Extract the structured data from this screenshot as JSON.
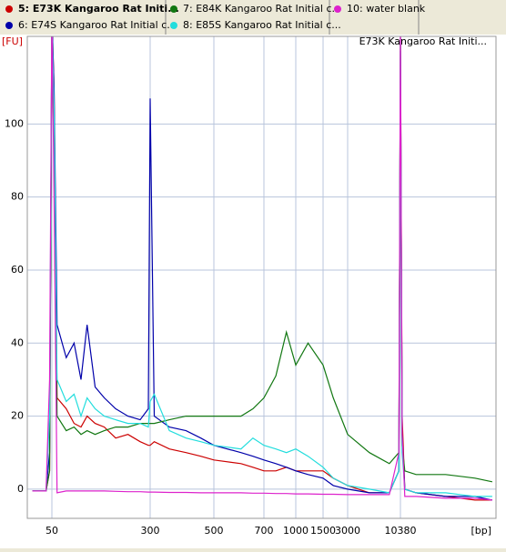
{
  "chart_data": {
    "type": "line",
    "title": "E73K Kangaroo Rat Initi...",
    "ylabel": "[FU]",
    "xlabel": "[bp]",
    "x": [
      35,
      45,
      48,
      50,
      52,
      55,
      65,
      75,
      85,
      95,
      110,
      130,
      160,
      200,
      250,
      290,
      300,
      310,
      350,
      400,
      450,
      500,
      600,
      650,
      700,
      800,
      900,
      1000,
      1200,
      1500,
      2000,
      3000,
      5000,
      8000,
      10000,
      10380,
      10800,
      11500,
      15000,
      30000,
      60000,
      90000
    ],
    "xlim": [
      32,
      95000
    ],
    "xticks": [
      50,
      300,
      500,
      700,
      1000,
      1500,
      3000,
      10380
    ],
    "ylim": [
      -8,
      124
    ],
    "yticks": [
      0,
      20,
      40,
      60,
      80,
      100
    ],
    "grid": true,
    "series": [
      {
        "name": "5: E73K Kangaroo Rat Initi...",
        "color": "#cc0000",
        "values": [
          -0.5,
          -0.5,
          5,
          130,
          110,
          25,
          22,
          18,
          17,
          20,
          18,
          17,
          14,
          15,
          13,
          12,
          12,
          13,
          11,
          10,
          9,
          8,
          7,
          6,
          5,
          5,
          6,
          5,
          5,
          5,
          3,
          1,
          -1,
          -1,
          5,
          124,
          20,
          0,
          -1,
          -2,
          -3,
          -3
        ]
      },
      {
        "name": "6: E74S Kangaroo Rat Initial c...",
        "color": "#0000aa",
        "values": [
          -0.5,
          -0.5,
          10,
          130,
          110,
          45,
          36,
          40,
          30,
          45,
          28,
          25,
          22,
          20,
          19,
          22,
          107,
          20,
          17,
          16,
          14,
          12,
          10,
          9,
          8,
          7,
          6,
          5,
          4,
          3,
          1,
          0,
          -1,
          -1,
          5,
          120,
          15,
          0,
          -1,
          -2,
          -2,
          -3
        ]
      },
      {
        "name": "7: E84K Kangaroo Rat Initial c...",
        "color": "#117711",
        "values": [
          -0.5,
          -0.5,
          5,
          125,
          100,
          20,
          16,
          17,
          15,
          16,
          15,
          16,
          17,
          17,
          18,
          18,
          18,
          18,
          19,
          20,
          20,
          20,
          20,
          22,
          25,
          31,
          43,
          34,
          40,
          34,
          25,
          15,
          10,
          7,
          10,
          122,
          12,
          5,
          4,
          4,
          3,
          2
        ]
      },
      {
        "name": "8: E85S Kangaroo Rat Initial c...",
        "color": "#22dddd",
        "values": [
          -0.5,
          -0.5,
          20,
          128,
          105,
          30,
          24,
          26,
          20,
          25,
          22,
          20,
          19,
          18,
          18,
          17,
          24,
          26,
          16,
          14,
          13,
          12,
          11,
          14,
          12,
          11,
          10,
          11,
          9,
          6,
          3,
          1,
          0,
          -1,
          5,
          125,
          10,
          0,
          -1,
          -1,
          -2,
          -2
        ]
      },
      {
        "name": "10: water blank",
        "color": "#dd22cc",
        "values": [
          -0.5,
          -0.5,
          30,
          130,
          80,
          -1,
          -0.5,
          -0.5,
          -0.5,
          -0.5,
          -0.5,
          -0.5,
          -0.6,
          -0.7,
          -0.7,
          -0.8,
          -0.8,
          -0.8,
          -0.9,
          -0.9,
          -1,
          -1,
          -1,
          -1.1,
          -1.1,
          -1.2,
          -1.2,
          -1.3,
          -1.3,
          -1.4,
          -1.4,
          -1.5,
          -1.5,
          -1.5,
          10,
          128,
          15,
          -2,
          -2,
          -2.5,
          -2.5,
          -3
        ]
      }
    ]
  }
}
